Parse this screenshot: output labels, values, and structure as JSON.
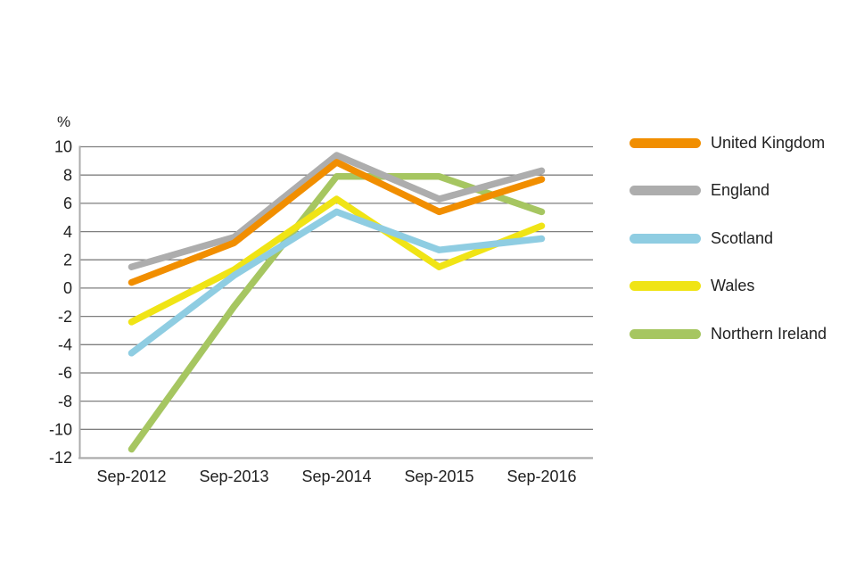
{
  "chart_data": {
    "type": "line",
    "title": "",
    "xlabel": "",
    "ylabel": "%",
    "categories": [
      "Sep-2012",
      "Sep-2013",
      "Sep-2014",
      "Sep-2015",
      "Sep-2016"
    ],
    "yticks": [
      10,
      8,
      6,
      4,
      2,
      0,
      -2,
      -4,
      -6,
      -8,
      -10,
      -12
    ],
    "ylim": [
      -12,
      10
    ],
    "grid": true,
    "legend_position": "right",
    "series": [
      {
        "name": "United Kingdom",
        "color": "#F18E00",
        "values": [
          0.4,
          3.2,
          8.9,
          5.4,
          7.7
        ]
      },
      {
        "name": "England",
        "color": "#ADADAD",
        "values": [
          1.5,
          3.6,
          9.4,
          6.3,
          8.3
        ]
      },
      {
        "name": "Scotland",
        "color": "#8FCDE2",
        "values": [
          -4.6,
          0.9,
          5.4,
          2.7,
          3.5
        ]
      },
      {
        "name": "Wales",
        "color": "#F0E415",
        "values": [
          -2.4,
          1.3,
          6.3,
          1.5,
          4.4
        ]
      },
      {
        "name": "Northern Ireland",
        "color": "#A6C661",
        "values": [
          -11.4,
          -1.3,
          7.9,
          7.9,
          5.4
        ]
      }
    ],
    "styles": {
      "gridline_color": "#7F7F7F",
      "axis_color": "#ABABAB",
      "text_color": "#1F1F1F"
    }
  }
}
